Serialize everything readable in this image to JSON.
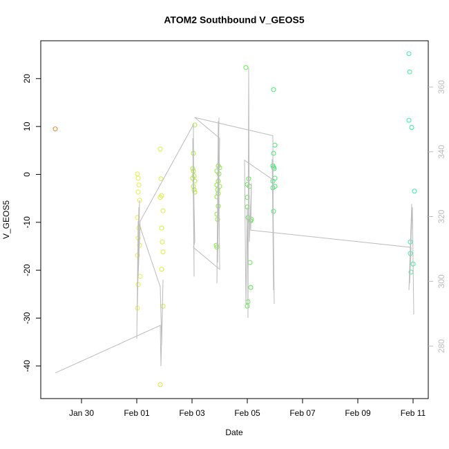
{
  "chart_data": {
    "type": "scatter",
    "title": "ATOM2 Southbound V_GEOS5",
    "x_label": "Date",
    "y_label": "V_GEOS5",
    "xlim": [
      28.525,
      42.55
    ],
    "xticks": [
      {
        "value": 30,
        "label": "Jan 30"
      },
      {
        "value": 32,
        "label": "Feb 01"
      },
      {
        "value": 34,
        "label": "Feb 03"
      },
      {
        "value": 36,
        "label": "Feb 05"
      },
      {
        "value": 38,
        "label": "Feb 07"
      },
      {
        "value": 40,
        "label": "Feb 09"
      },
      {
        "value": 42,
        "label": "Feb 11"
      }
    ],
    "ylim": [
      -46.8,
      27.9
    ],
    "yticks": [
      -40,
      -30,
      -20,
      -10,
      0,
      10,
      20
    ],
    "y2lim": [
      263.8,
      374.3
    ],
    "y2ticks": [
      280,
      300,
      320,
      340,
      360
    ],
    "series": [
      {
        "color": "#e8862a",
        "x": [
          29.05
        ],
        "values": [
          9.5
        ]
      },
      {
        "color": "#e6f03a",
        "x": [
          32.025,
          32.05,
          32.075,
          32.05,
          32.1,
          32.025,
          32.075,
          32.05,
          32.1,
          32.025,
          32.125,
          32.05,
          32.025
        ],
        "values": [
          0.1,
          -0.8,
          -2.2,
          -3.7,
          -5.4,
          -9,
          -11.2,
          -13.3,
          -14.8,
          -16.9,
          -21.3,
          -23,
          -27.9
        ]
      },
      {
        "color": "#d8f030",
        "x": [
          32.85,
          32.875,
          32.9,
          32.85,
          32.95,
          32.9,
          32.925,
          32.95,
          32.9,
          32.95,
          32.85
        ],
        "values": [
          5.3,
          -0.9,
          -4.4,
          -4.8,
          -7.6,
          -11.2,
          -14.1,
          -16.2,
          -19.8,
          -27.5,
          -43.9
        ]
      },
      {
        "color": "#a8f030",
        "x": [
          34.1,
          34.05,
          34.025,
          34.05,
          34.075,
          34.025,
          34.1,
          34.05,
          34.075,
          34.1
        ],
        "values": [
          10.3,
          4.4,
          1.2,
          0.7,
          -0.3,
          -0.8,
          -1.4,
          -2.5,
          -3.2,
          -3.7
        ]
      },
      {
        "color": "#80f030",
        "x": [
          34.95,
          35.0,
          34.9,
          34.975,
          34.95,
          34.9,
          35.0,
          34.925,
          34.95,
          34.9,
          34.95,
          34.9,
          34.925,
          34.875,
          34.9
        ],
        "values": [
          1.8,
          1.4,
          0.7,
          0.1,
          -1.4,
          -2.2,
          -2.5,
          -3.2,
          -4.0,
          -4.7,
          -6.6,
          -8.3,
          -9.4,
          -14.8,
          -15.2
        ]
      },
      {
        "color": "#50f040",
        "x": [
          35.95,
          36.05,
          36.0,
          36.075,
          36.0,
          36.0,
          36.025,
          36.15,
          36.125,
          36.1,
          36.125,
          36.025,
          36.0
        ],
        "values": [
          22.3,
          -0.9,
          -2.1,
          -2.5,
          -4.8,
          -6.8,
          -9.0,
          -9.4,
          -9.7,
          -18.4,
          -23.6,
          -26.6,
          -27.5
        ]
      },
      {
        "color": "#30f060",
        "x": [
          36.95,
          37.0,
          36.95,
          36.925,
          36.95,
          36.975,
          37.0,
          36.925,
          37.0,
          36.925,
          36.95
        ],
        "values": [
          17.7,
          6.1,
          4.4,
          1.8,
          1.5,
          1.2,
          -0.8,
          -1.4,
          -2.5,
          -2.8,
          -7.7
        ]
      },
      {
        "color": "#30f0a0",
        "x": [
          41.85,
          41.875,
          41.85,
          41.95,
          42.05,
          41.9,
          41.9,
          42.0,
          41.925
        ],
        "values": [
          25.2,
          21.4,
          11.3,
          9.8,
          -3.5,
          -14.1,
          -16.5,
          -18.7,
          -20.4
        ]
      },
      {
        "type": "line",
        "axis": "y2",
        "color": "#bbbbbb",
        "x": [
          29.05,
          32.85,
          32.875,
          32.95,
          32.9,
          32.85,
          32.05,
          32.0,
          32.075,
          32.025,
          32.1,
          32.05,
          32.125,
          34.05,
          34.075,
          34.025,
          34.1,
          34.05,
          35.0,
          34.95,
          34.9,
          34.975,
          34.925,
          35.0,
          34.1,
          36.925,
          36.95,
          36.9,
          36.975,
          36.925,
          35.9,
          35.95,
          36.0,
          36.025,
          36.05,
          36.075,
          36.15,
          36.125,
          41.925,
          41.875,
          41.95,
          41.85,
          41.975,
          42.025
        ],
        "values": [
          271.7,
          286.4,
          273.8,
          300.5,
          280.2,
          298.3,
          318.6,
          282.3,
          322.9,
          293.0,
          325.0,
          301.5,
          318.6,
          348.4,
          301.5,
          344.2,
          312.2,
          310.5,
          303.7,
          349.5,
          299.4,
          350.6,
          305.8,
          344.2,
          350.6,
          345.0,
          297.3,
          337.8,
          293.0,
          331.4,
          337.4,
          293.0,
          322.9,
          288.7,
          365.9,
          312.2,
          330.3,
          315.8,
          310.5,
          299.4,
          323.9,
          297.3,
          322.9,
          289.8
        ]
      }
    ]
  }
}
